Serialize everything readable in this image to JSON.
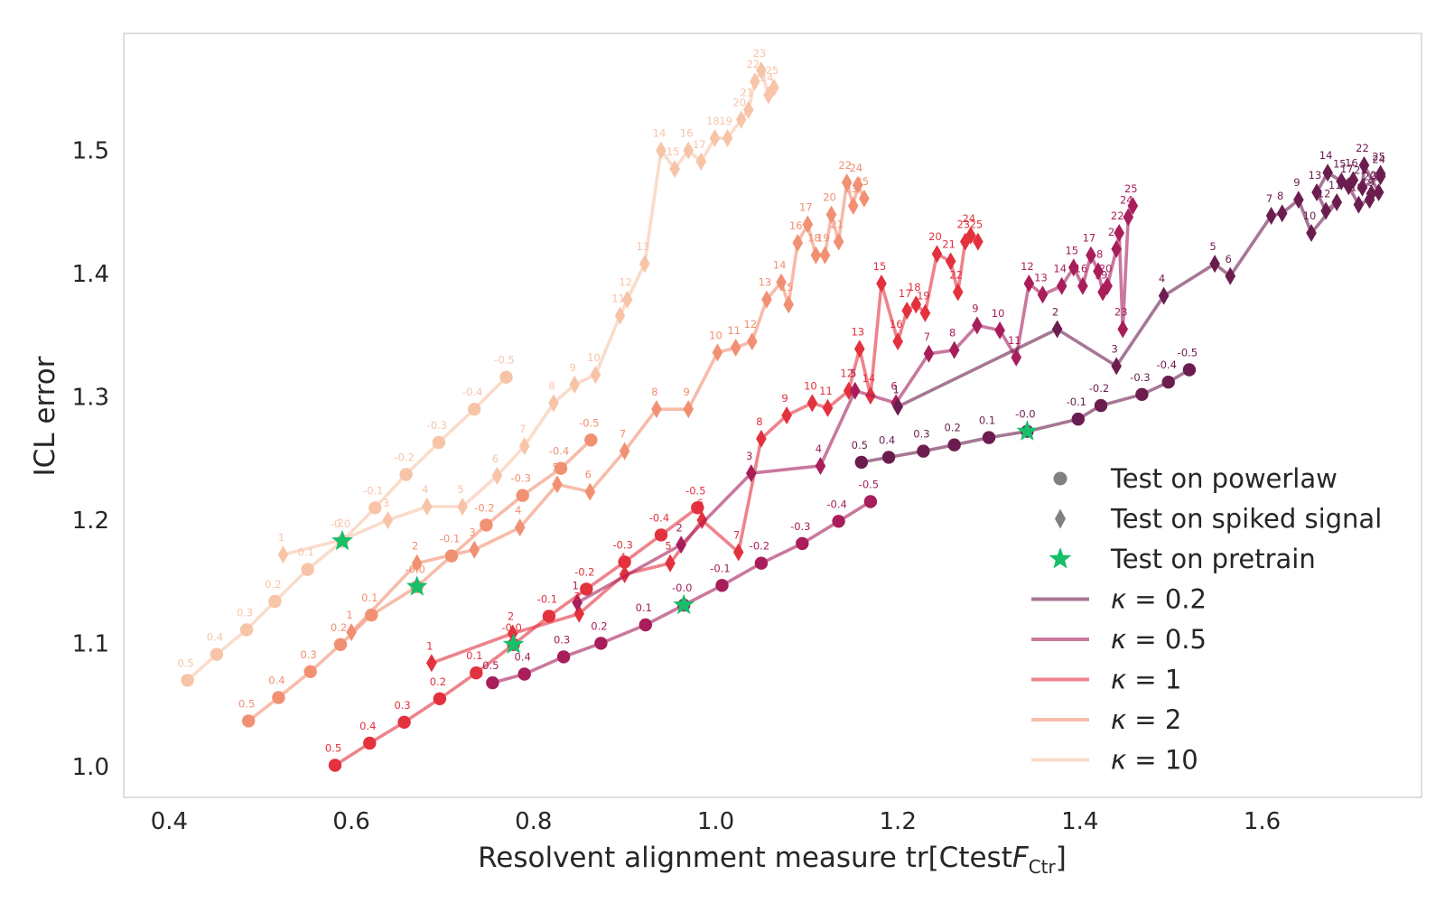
{
  "chart_data": {
    "type": "line",
    "xlabel": "Resolvent alignment measure tr[Ctest F_Ctr]",
    "ylabel": "ICL error",
    "xlim": [
      0.35,
      1.775
    ],
    "ylim": [
      0.975,
      1.595
    ],
    "xticks": [
      "0.4",
      "0.6",
      "0.8",
      "1.0",
      "1.2",
      "1.4",
      "1.6"
    ],
    "yticks": [
      "1.0",
      "1.1",
      "1.2",
      "1.3",
      "1.4",
      "1.5"
    ],
    "grid": false,
    "legend_position": "lower-right",
    "legend": {
      "markers": [
        {
          "label": "Test on powerlaw",
          "marker": "circle"
        },
        {
          "label": "Test on spiked signal",
          "marker": "diamond"
        },
        {
          "label": "Test on pretrain",
          "marker": "star"
        }
      ],
      "lines": [
        {
          "kappa_prefix": "κ = ",
          "value": "0.2"
        },
        {
          "kappa_prefix": "κ = ",
          "value": "0.5"
        },
        {
          "kappa_prefix": "κ = ",
          "value": "1"
        },
        {
          "kappa_prefix": "κ = ",
          "value": "2"
        },
        {
          "kappa_prefix": "κ = ",
          "value": "10"
        }
      ]
    },
    "pretrain_stars": [
      {
        "x": 0.59,
        "y": 1.183
      },
      {
        "x": 0.672,
        "y": 1.146
      },
      {
        "x": 0.778,
        "y": 1.099
      },
      {
        "x": 0.965,
        "y": 1.131
      },
      {
        "x": 1.342,
        "y": 1.272
      }
    ],
    "series": [
      {
        "kappa": "10",
        "color": "#f7c4a8",
        "powerlaw": {
          "x": [
            0.42,
            0.452,
            0.485,
            0.516,
            0.552,
            0.59,
            0.626,
            0.66,
            0.696,
            0.735,
            0.77
          ],
          "y": [
            1.07,
            1.091,
            1.111,
            1.134,
            1.16,
            1.183,
            1.21,
            1.237,
            1.263,
            1.29,
            1.316
          ],
          "labels": [
            "0.5",
            "0.4",
            "0.3",
            "0.2",
            "0.1",
            "-0.0",
            "-0.1",
            "-0.2",
            "-0.3",
            "-0.4",
            "-0.5"
          ]
        },
        "spiked": {
          "x": [
            0.525,
            0.59,
            0.64,
            0.683,
            0.722,
            0.76,
            0.79,
            0.822,
            0.845,
            0.868,
            0.895,
            0.903,
            0.922,
            0.94,
            0.955,
            0.97,
            0.984,
            0.999,
            1.013,
            1.028,
            1.036,
            1.043,
            1.05,
            1.058,
            1.064
          ],
          "y": [
            1.172,
            1.184,
            1.2,
            1.211,
            1.211,
            1.236,
            1.26,
            1.295,
            1.31,
            1.318,
            1.366,
            1.379,
            1.408,
            1.5,
            1.485,
            1.5,
            1.491,
            1.51,
            1.51,
            1.525,
            1.533,
            1.556,
            1.565,
            1.545,
            1.551
          ],
          "labels": [
            "1",
            "2",
            "3",
            "4",
            "5",
            "6",
            "7",
            "8",
            "9",
            "10",
            "11",
            "12",
            "13",
            "14",
            "15",
            "16",
            "17",
            "18",
            "19",
            "20",
            "21",
            "22",
            "23",
            "24",
            "25"
          ]
        }
      },
      {
        "kappa": "2",
        "color": "#f19072",
        "powerlaw": {
          "x": [
            0.487,
            0.52,
            0.555,
            0.588,
            0.622,
            0.672,
            0.71,
            0.748,
            0.788,
            0.83,
            0.863
          ],
          "y": [
            1.037,
            1.056,
            1.077,
            1.099,
            1.123,
            1.146,
            1.171,
            1.196,
            1.22,
            1.242,
            1.265
          ],
          "labels": [
            "0.5",
            "0.4",
            "0.3",
            "0.2",
            "0.1",
            "-0.0",
            "-0.1",
            "-0.2",
            "-0.3",
            "-0.4",
            "-0.5"
          ]
        },
        "spiked": {
          "x": [
            0.6,
            0.672,
            0.735,
            0.785,
            0.826,
            0.862,
            0.9,
            0.935,
            0.97,
            1.002,
            1.022,
            1.04,
            1.056,
            1.072,
            1.08,
            1.09,
            1.101,
            1.11,
            1.12,
            1.127,
            1.135,
            1.144,
            1.151,
            1.156,
            1.163
          ],
          "y": [
            1.109,
            1.165,
            1.176,
            1.194,
            1.229,
            1.223,
            1.256,
            1.29,
            1.29,
            1.336,
            1.34,
            1.345,
            1.379,
            1.393,
            1.375,
            1.425,
            1.44,
            1.415,
            1.415,
            1.448,
            1.426,
            1.474,
            1.455,
            1.472,
            1.461
          ],
          "labels": [
            "1",
            "2",
            "3",
            "4",
            "5",
            "6",
            "7",
            "8",
            "9",
            "10",
            "11",
            "12",
            "13",
            "14",
            "15",
            "16",
            "17",
            "18",
            "19",
            "20",
            "21",
            "22",
            "23",
            "24",
            "25"
          ]
        }
      },
      {
        "kappa": "1",
        "color": "#e3313d",
        "powerlaw": {
          "x": [
            0.582,
            0.62,
            0.658,
            0.697,
            0.737,
            0.778,
            0.817,
            0.858,
            0.9,
            0.94,
            0.98
          ],
          "y": [
            1.001,
            1.019,
            1.036,
            1.055,
            1.076,
            1.099,
            1.122,
            1.144,
            1.166,
            1.188,
            1.21
          ],
          "labels": [
            "0.5",
            "0.4",
            "0.3",
            "0.2",
            "0.1",
            "-0.0",
            "-0.1",
            "-0.2",
            "-0.3",
            "-0.4",
            "-0.5"
          ]
        },
        "spiked": {
          "x": [
            0.688,
            0.777,
            0.85,
            0.9,
            0.95,
            0.985,
            1.025,
            1.05,
            1.078,
            1.106,
            1.123,
            1.146,
            1.158,
            1.17,
            1.182,
            1.2,
            1.21,
            1.22,
            1.23,
            1.243,
            1.258,
            1.266,
            1.274,
            1.28,
            1.288
          ],
          "y": [
            1.084,
            1.108,
            1.124,
            1.156,
            1.165,
            1.2,
            1.174,
            1.266,
            1.285,
            1.295,
            1.291,
            1.305,
            1.339,
            1.301,
            1.392,
            1.345,
            1.37,
            1.375,
            1.368,
            1.416,
            1.41,
            1.385,
            1.426,
            1.431,
            1.426
          ],
          "labels": [
            "1",
            "2",
            "3",
            "4",
            "5",
            "6",
            "7",
            "8",
            "9",
            "10",
            "11",
            "12",
            "13",
            "14",
            "15",
            "16",
            "17",
            "18",
            "19",
            "20",
            "21",
            "22",
            "23",
            "24",
            "25"
          ]
        }
      },
      {
        "kappa": "0.5",
        "color": "#a71e5b",
        "powerlaw": {
          "x": [
            0.755,
            0.79,
            0.833,
            0.874,
            0.923,
            0.965,
            1.007,
            1.05,
            1.095,
            1.135,
            1.17
          ],
          "y": [
            1.068,
            1.075,
            1.089,
            1.1,
            1.115,
            1.131,
            1.147,
            1.165,
            1.181,
            1.199,
            1.215
          ],
          "labels": [
            "0.5",
            "0.4",
            "0.3",
            "0.2",
            "0.1",
            "-0.0",
            "-0.1",
            "-0.2",
            "-0.3",
            "-0.4",
            "-0.5"
          ]
        },
        "spiked": {
          "x": [
            0.848,
            0.962,
            1.039,
            1.115,
            1.153,
            1.198,
            1.234,
            1.262,
            1.287,
            1.312,
            1.33,
            1.344,
            1.359,
            1.38,
            1.393,
            1.403,
            1.412,
            1.42,
            1.425,
            1.43,
            1.44,
            1.443,
            1.447,
            1.453,
            1.458
          ],
          "y": [
            1.133,
            1.18,
            1.238,
            1.244,
            1.305,
            1.295,
            1.335,
            1.338,
            1.358,
            1.354,
            1.332,
            1.392,
            1.383,
            1.39,
            1.405,
            1.39,
            1.415,
            1.402,
            1.385,
            1.39,
            1.42,
            1.433,
            1.355,
            1.446,
            1.455
          ],
          "labels": [
            "1",
            "2",
            "3",
            "4",
            "5",
            "6",
            "7",
            "8",
            "9",
            "10",
            "11",
            "12",
            "13",
            "14",
            "15",
            "16",
            "17",
            "18",
            "19",
            "20",
            "21",
            "22",
            "23",
            "24",
            "25"
          ]
        }
      },
      {
        "kappa": "0.2",
        "color": "#6b1d4f",
        "powerlaw": {
          "x": [
            1.16,
            1.19,
            1.228,
            1.262,
            1.3,
            1.342,
            1.398,
            1.423,
            1.468,
            1.497,
            1.52
          ],
          "y": [
            1.247,
            1.251,
            1.256,
            1.261,
            1.267,
            1.272,
            1.282,
            1.293,
            1.302,
            1.312,
            1.322
          ],
          "labels": [
            "0.5",
            "0.4",
            "0.3",
            "0.2",
            "0.1",
            "-0.0",
            "-0.1",
            "-0.2",
            "-0.3",
            "-0.4",
            "-0.5"
          ]
        },
        "spiked": {
          "x": [
            1.2,
            1.375,
            1.44,
            1.492,
            1.548,
            1.565,
            1.61,
            1.622,
            1.64,
            1.654,
            1.682,
            1.67,
            1.66,
            1.672,
            1.687,
            1.7,
            1.695,
            1.706,
            1.718,
            1.72,
            1.728,
            1.712,
            1.71,
            1.73,
            1.73
          ],
          "y": [
            1.292,
            1.355,
            1.325,
            1.382,
            1.408,
            1.398,
            1.447,
            1.449,
            1.46,
            1.433,
            1.458,
            1.451,
            1.466,
            1.482,
            1.475,
            1.476,
            1.471,
            1.456,
            1.46,
            1.465,
            1.466,
            1.488,
            1.47,
            1.479,
            1.481
          ],
          "labels": [
            "1",
            "2",
            "3",
            "4",
            "5",
            "6",
            "7",
            "8",
            "9",
            "10",
            "11",
            "12",
            "13",
            "14",
            "15",
            "16",
            "17",
            "18",
            "19",
            "20",
            "21",
            "22",
            "23",
            "24",
            "25"
          ]
        }
      }
    ]
  }
}
